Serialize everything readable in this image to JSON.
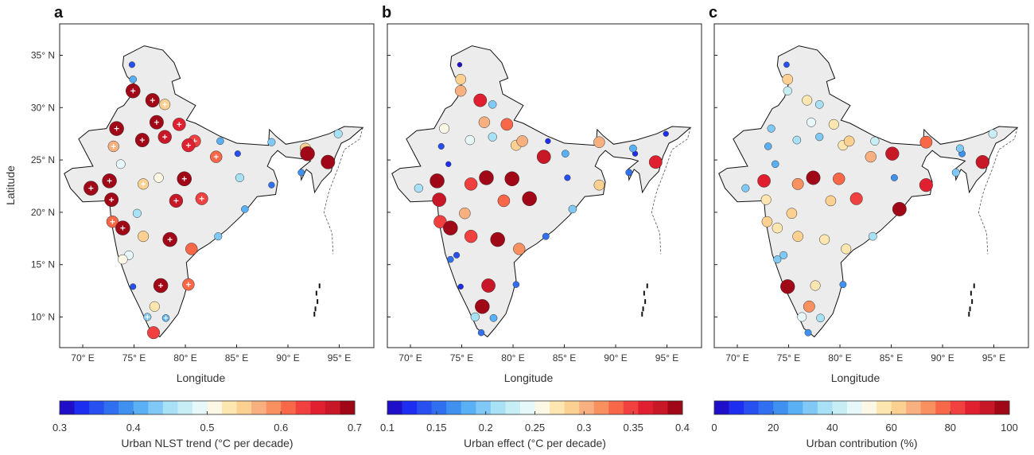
{
  "figure": {
    "ylabel": "Latitude",
    "lat_ticks": [
      {
        "value": 35,
        "label": "35° N"
      },
      {
        "value": 30,
        "label": "30° N"
      },
      {
        "value": 25,
        "label": "25° N"
      },
      {
        "value": 20,
        "label": "20° N"
      },
      {
        "value": 15,
        "label": "15° N"
      },
      {
        "value": 10,
        "label": "10° N"
      }
    ],
    "lon_ticks": [
      {
        "value": 70,
        "label": "70° E"
      },
      {
        "value": 75,
        "label": "75° E"
      },
      {
        "value": 80,
        "label": "80° E"
      },
      {
        "value": 85,
        "label": "85° E"
      },
      {
        "value": 90,
        "label": "90° E"
      },
      {
        "value": 95,
        "label": "95° E"
      }
    ],
    "xlabel": "Longitude",
    "land_color": "#ececec",
    "colormap": [
      "#1f0fc8",
      "#1e2ef0",
      "#2850f0",
      "#3070f0",
      "#4090f0",
      "#5ab0f5",
      "#80c8f5",
      "#a8e0f5",
      "#c8eef5",
      "#e6f8fa",
      "#fdf8e6",
      "#fde6b0",
      "#fcd090",
      "#f8b080",
      "#f89060",
      "#f86848",
      "#f04040",
      "#e02030",
      "#c81828",
      "#a00818"
    ]
  },
  "chart_data": {
    "type": "map-scatter",
    "locations": [
      [
        77.2,
        28.6
      ],
      [
        76.8,
        30.7
      ],
      [
        75.8,
        26.9
      ],
      [
        80.9,
        26.8
      ],
      [
        80.3,
        26.4
      ],
      [
        78.0,
        27.2
      ],
      [
        72.6,
        23.0
      ],
      [
        70.8,
        22.3
      ],
      [
        72.8,
        21.2
      ],
      [
        72.9,
        19.1
      ],
      [
        73.9,
        18.5
      ],
      [
        79.1,
        21.1
      ],
      [
        77.4,
        23.3
      ],
      [
        75.9,
        22.7
      ],
      [
        78.5,
        17.4
      ],
      [
        77.6,
        13.0
      ],
      [
        80.3,
        13.1
      ],
      [
        76.3,
        10.0
      ],
      [
        76.9,
        8.5
      ],
      [
        77.0,
        11.0
      ],
      [
        78.1,
        9.9
      ],
      [
        88.4,
        22.6
      ],
      [
        85.1,
        25.6
      ],
      [
        85.3,
        23.3
      ],
      [
        85.8,
        20.3
      ],
      [
        81.6,
        21.3
      ],
      [
        83.2,
        17.7
      ],
      [
        80.6,
        16.5
      ],
      [
        91.7,
        26.1
      ],
      [
        91.9,
        25.6
      ],
      [
        93.9,
        24.8
      ],
      [
        94.9,
        27.5
      ],
      [
        74.8,
        34.1
      ],
      [
        74.9,
        32.7
      ],
      [
        74.9,
        31.6
      ],
      [
        78.0,
        30.3
      ],
      [
        73.3,
        28.0
      ],
      [
        73.0,
        26.3
      ],
      [
        73.7,
        24.6
      ],
      [
        83.0,
        25.3
      ],
      [
        83.4,
        26.8
      ],
      [
        79.9,
        23.2
      ],
      [
        75.3,
        19.9
      ],
      [
        75.9,
        17.7
      ],
      [
        74.5,
        15.9
      ],
      [
        74.9,
        12.9
      ],
      [
        73.9,
        15.5
      ],
      [
        88.4,
        26.7
      ],
      [
        91.3,
        23.8
      ],
      [
        79.4,
        28.4
      ]
    ],
    "panels": [
      {
        "letter": "a",
        "colorbar_label": "Urban NLST trend (°C per decade)",
        "range": [
          0.3,
          0.7
        ],
        "ticks": [
          "0.3",
          "0.4",
          "0.5",
          "0.6",
          "0.7"
        ],
        "values": [
          0.68,
          0.68,
          0.68,
          0.62,
          0.65,
          0.66,
          0.7,
          0.7,
          0.68,
          0.6,
          0.7,
          0.66,
          0.5,
          0.55,
          0.7,
          0.7,
          0.6,
          0.42,
          0.62,
          0.52,
          0.4,
          0.36,
          0.35,
          0.45,
          0.4,
          0.62,
          0.42,
          0.6,
          0.55,
          0.7,
          0.68,
          0.45,
          0.35,
          0.4,
          0.7,
          0.55,
          0.7,
          0.56,
          0.48,
          0.6,
          0.4,
          0.7,
          0.45,
          0.55,
          0.48,
          0.35,
          0.5,
          0.42,
          0.38,
          0.64
        ],
        "significant": [
          true,
          true,
          true,
          true,
          true,
          true,
          true,
          true,
          true,
          true,
          true,
          true,
          false,
          true,
          true,
          true,
          true,
          true,
          false,
          false,
          true,
          false,
          false,
          false,
          false,
          true,
          false,
          false,
          false,
          false,
          false,
          false,
          false,
          false,
          true,
          true,
          true,
          true,
          false,
          true,
          false,
          true,
          false,
          false,
          false,
          false,
          false,
          false,
          false,
          true
        ]
      },
      {
        "letter": "b",
        "colorbar_label": "Urban effect (°C per decade)",
        "range": [
          0.1,
          0.4
        ],
        "ticks": [
          "0.1",
          "0.15",
          "0.2",
          "0.25",
          "0.3",
          "0.35",
          "0.4"
        ],
        "values": [
          0.3,
          0.36,
          0.25,
          0.3,
          0.28,
          0.22,
          0.4,
          0.22,
          0.38,
          0.35,
          0.4,
          0.33,
          0.4,
          0.35,
          0.4,
          0.38,
          0.15,
          0.22,
          0.15,
          0.4,
          0.18,
          0.28,
          0.18,
          0.14,
          0.2,
          0.4,
          0.16,
          0.32,
          0.18,
          0.12,
          0.36,
          0.12,
          0.1,
          0.28,
          0.3,
          0.2,
          0.26,
          0.14,
          0.12,
          0.38,
          0.12,
          0.4,
          0.3,
          0.35,
          0.14,
          0.12,
          0.15,
          0.3,
          0.16,
          0.33
        ]
      },
      {
        "letter": "c",
        "colorbar_label": "Urban contribution (%)",
        "range": [
          0,
          100
        ],
        "ticks": [
          "0",
          "20",
          "40",
          "60",
          "80",
          "100"
        ],
        "values": [
          45,
          55,
          35,
          60,
          55,
          32,
          85,
          30,
          55,
          60,
          58,
          60,
          95,
          70,
          55,
          55,
          20,
          45,
          20,
          70,
          35,
          88,
          90,
          20,
          95,
          80,
          35,
          55,
          30,
          20,
          90,
          40,
          10,
          60,
          40,
          35,
          30,
          25,
          25,
          65,
          40,
          75,
          60,
          60,
          30,
          98,
          30,
          78,
          30,
          55
        ]
      }
    ]
  }
}
